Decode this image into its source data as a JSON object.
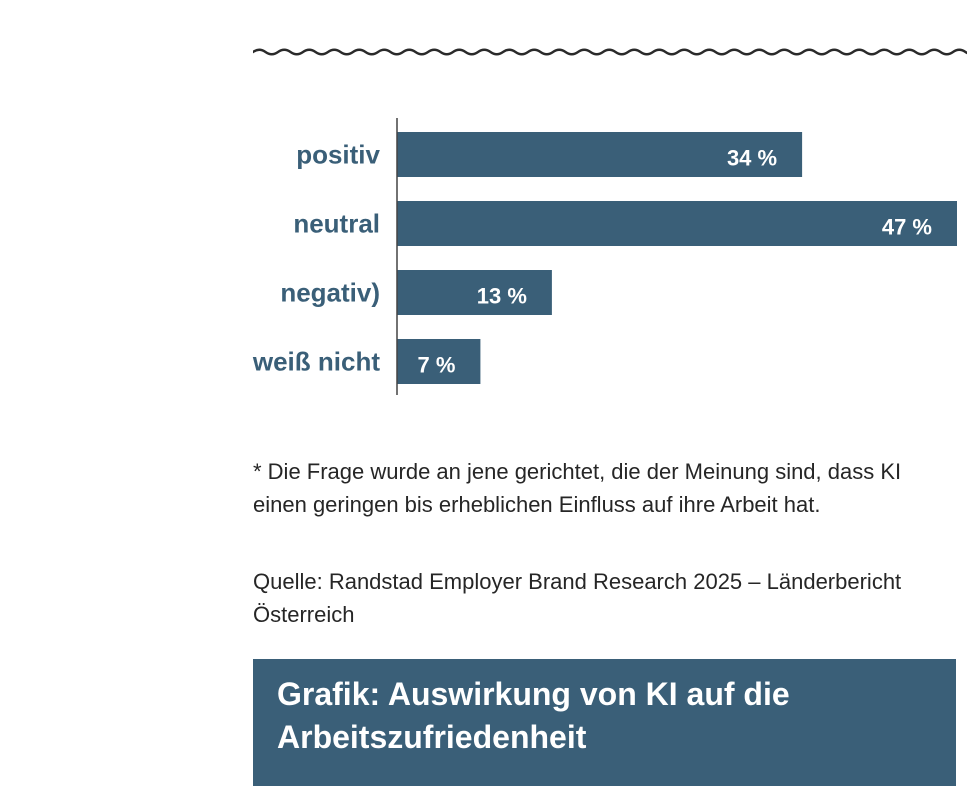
{
  "colors": {
    "bar": "#3a5f78",
    "axis": "#444444",
    "wave": "#2a2a2a",
    "title_bg": "#3a5f78"
  },
  "chart_data": {
    "type": "bar",
    "orientation": "horizontal",
    "categories": [
      "positiv",
      "neutral",
      "negativ)",
      "weiß nicht"
    ],
    "values": [
      34,
      47,
      13,
      7
    ],
    "value_labels": [
      "34 %",
      "47 %",
      "13 %",
      "7 %"
    ],
    "xlim": [
      0,
      47
    ],
    "grid": false,
    "legend": "none"
  },
  "footnote": "* Die Frage wurde an jene gerichtet, die der Meinung sind, dass KI einen geringen bis erheblichen Einfluss auf ihre Arbeit hat.",
  "source": "Quelle: Randstad Employer Brand Research 2025 – Länderbericht Österreich",
  "title": "Grafik: Auswirkung von KI auf die Arbeitszufriedenheit"
}
